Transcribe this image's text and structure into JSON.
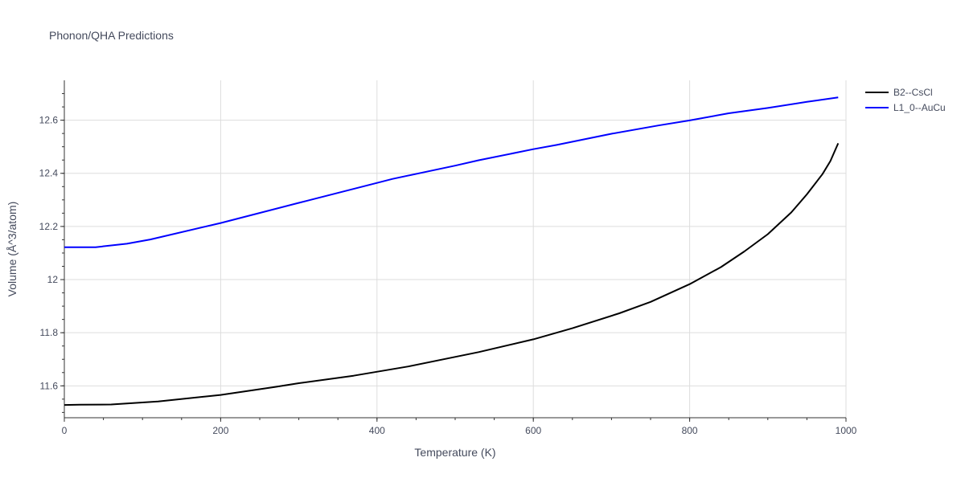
{
  "chart_data": {
    "type": "line",
    "title": "Phonon/QHA Predictions",
    "xlabel": "Temperature (K)",
    "ylabel": "Volume (Å^3/atom)",
    "xlim": [
      0,
      1000
    ],
    "ylim": [
      11.48,
      12.75
    ],
    "xticks": [
      0,
      200,
      400,
      600,
      800,
      1000
    ],
    "xtick_labels": [
      "0",
      "200",
      "400",
      "600",
      "800",
      "1000"
    ],
    "yticks": [
      11.6,
      11.8,
      12.0,
      12.2,
      12.4,
      12.6
    ],
    "ytick_labels": [
      "11.6",
      "11.8",
      "12",
      "12.2",
      "12.4",
      "12.6"
    ],
    "grid": true,
    "legend_position": "top-right",
    "series": [
      {
        "name": "B2--CsCl",
        "color": "#000000",
        "x": [
          0,
          20,
          60,
          120,
          200,
          270,
          300,
          370,
          440,
          530,
          600,
          650,
          710,
          750,
          800,
          840,
          870,
          900,
          930,
          950,
          970,
          980,
          990
        ],
        "y": [
          11.528,
          11.529,
          11.53,
          11.541,
          11.566,
          11.596,
          11.61,
          11.638,
          11.673,
          11.727,
          11.775,
          11.817,
          11.873,
          11.916,
          11.983,
          12.047,
          12.106,
          12.171,
          12.253,
          12.321,
          12.397,
          12.446,
          12.513
        ]
      },
      {
        "name": "L1_0--AuCu",
        "color": "#0000ff",
        "x": [
          0,
          40,
          80,
          110,
          200,
          300,
          400,
          420,
          500,
          530,
          600,
          630,
          700,
          760,
          800,
          850,
          900,
          950,
          990
        ],
        "y": [
          12.122,
          12.122,
          12.135,
          12.151,
          12.213,
          12.289,
          12.364,
          12.379,
          12.429,
          12.449,
          12.491,
          12.507,
          12.549,
          12.58,
          12.599,
          12.626,
          12.646,
          12.669,
          12.686
        ]
      }
    ]
  }
}
